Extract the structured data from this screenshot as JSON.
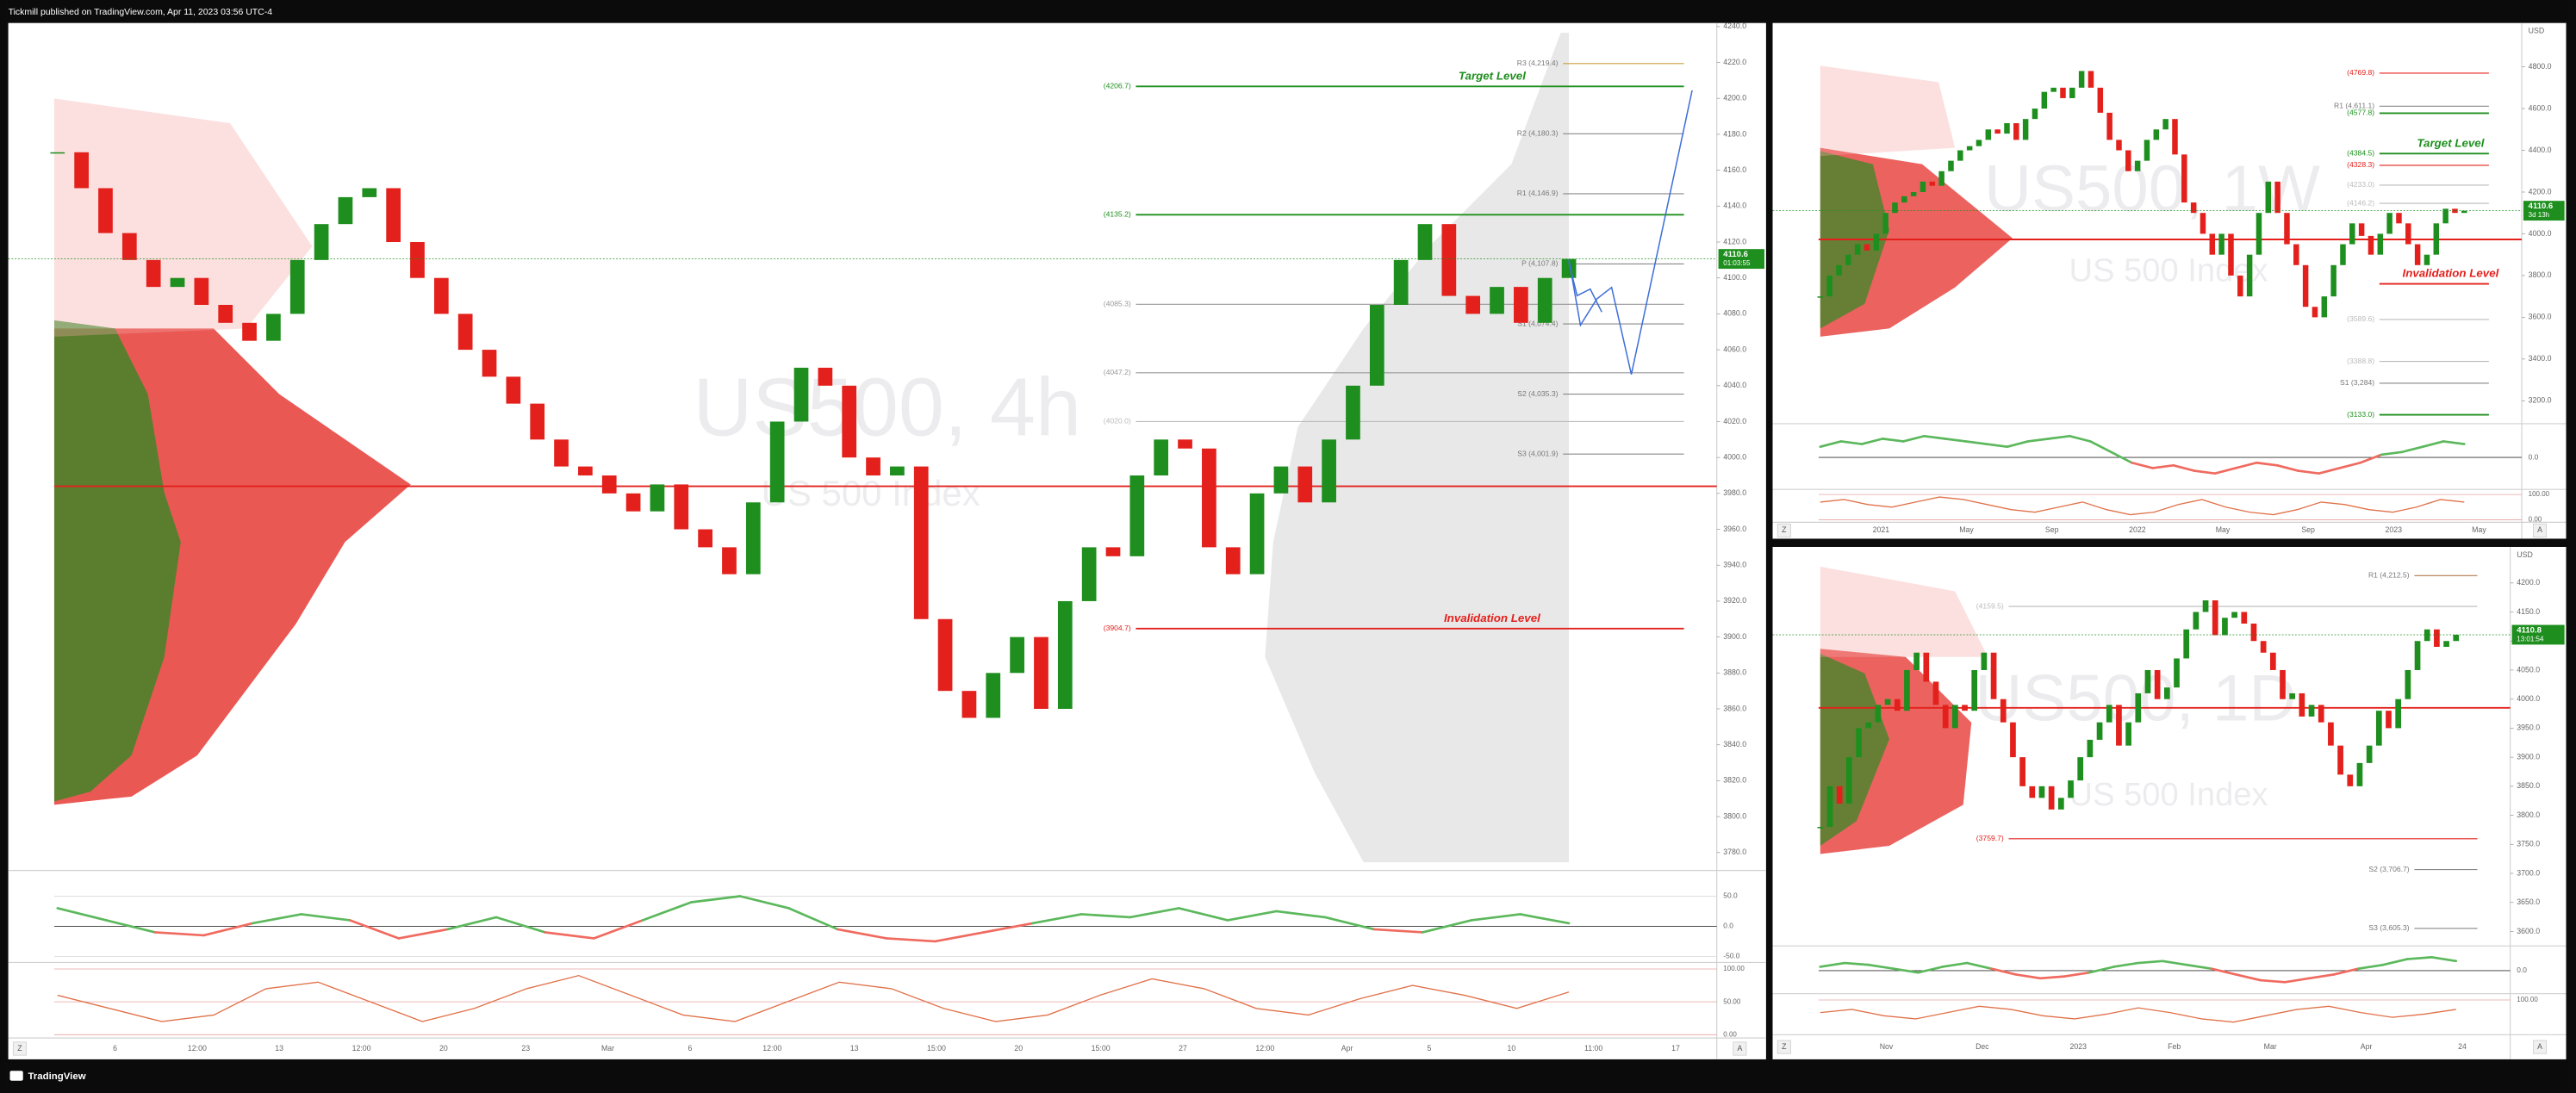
{
  "header": {
    "publisher": "Tickmill published on TradingView.com, Apr 11, 2023 03:56 UTC-4"
  },
  "footer": {
    "brand": "TradingView"
  },
  "controls": {
    "zoom": "Z",
    "auto": "A"
  },
  "candle_colors": {
    "up": "#1e8f1e",
    "down": "#e3201b"
  },
  "panels": [
    {
      "watermark": "US500, 4h",
      "subtitle": "US 500 Index",
      "ylim": [
        3770,
        4242
      ],
      "yticks": [
        {
          "value": 3780,
          "label": "3780.0"
        },
        {
          "value": 3800,
          "label": "3800.0"
        },
        {
          "value": 3820,
          "label": "3820.0"
        },
        {
          "value": 3840,
          "label": "3840.0"
        },
        {
          "value": 3860,
          "label": "3860.0"
        },
        {
          "value": 3880,
          "label": "3880.0"
        },
        {
          "value": 3900,
          "label": "3900.0"
        },
        {
          "value": 3920,
          "label": "3920.0"
        },
        {
          "value": 3940,
          "label": "3940.0"
        },
        {
          "value": 3960,
          "label": "3960.0"
        },
        {
          "value": 3980,
          "label": "3980.0"
        },
        {
          "value": 4000,
          "label": "4000.0"
        },
        {
          "value": 4020,
          "label": "4020.0"
        },
        {
          "value": 4040,
          "label": "4040.0"
        },
        {
          "value": 4060,
          "label": "4060.0"
        },
        {
          "value": 4080,
          "label": "4080.0"
        },
        {
          "value": 4100,
          "label": "4100.0"
        },
        {
          "value": 4120,
          "label": "4120.0"
        },
        {
          "value": 4140,
          "label": "4140.0"
        },
        {
          "value": 4160,
          "label": "4160.0"
        },
        {
          "value": 4180,
          "label": "4180.0"
        },
        {
          "value": 4200,
          "label": "4200.0"
        },
        {
          "value": 4220,
          "label": "4220.0"
        },
        {
          "value": 4240,
          "label": "4240.0"
        }
      ],
      "last": {
        "value": 4110.6,
        "label": "4110.6",
        "timer": "01:03:55"
      },
      "closes": [
        4170,
        4150,
        4125,
        4110,
        4095,
        4100,
        4085,
        4075,
        4065,
        4080,
        4110,
        4130,
        4145,
        4150,
        4120,
        4100,
        4080,
        4060,
        4045,
        4030,
        4010,
        3995,
        3990,
        3980,
        3970,
        3985,
        3960,
        3950,
        3935,
        3975,
        4020,
        4050,
        4040,
        4000,
        3990,
        3995,
        3910,
        3870,
        3855,
        3880,
        3900,
        3860,
        3920,
        3950,
        3945,
        3990,
        4010,
        4005,
        3950,
        3935,
        3980,
        3995,
        3975,
        4010,
        4040,
        4085,
        4110,
        4130,
        4090,
        4080,
        4095,
        4075,
        4100,
        4110.6
      ],
      "levels": [
        {
          "text": "R3 (4,219.4)",
          "value": 4219.4,
          "color": "#c8a040"
        },
        {
          "text": "(4206.7)",
          "value": 4206.7,
          "color": "#1e8f1e",
          "note": "Target Level"
        },
        {
          "text": "R2 (4,180.3)",
          "value": 4180.3,
          "color": "#888888"
        },
        {
          "text": "R1 (4,146.9)",
          "value": 4146.9,
          "color": "#888888"
        },
        {
          "text": "(4135.2)",
          "value": 4135.2,
          "color": "#1e8f1e"
        },
        {
          "text": "P (4,107.8)",
          "value": 4107.8,
          "color": "#888888"
        },
        {
          "text": "(4085.3)",
          "value": 4085.3,
          "color": "#999999"
        },
        {
          "text": "S1 (4,074.4)",
          "value": 4074.4,
          "color": "#888888"
        },
        {
          "text": "(4047.2)",
          "value": 4047.2,
          "color": "#999999"
        },
        {
          "text": "S2 (4,035.3)",
          "value": 4035.3,
          "color": "#888888"
        },
        {
          "text": "(4020.0)",
          "value": 4020.0,
          "color": "#bbbbbb"
        },
        {
          "text": "S3 (4,001.9)",
          "value": 4001.9,
          "color": "#888888"
        },
        {
          "text": "(3904.7)",
          "value": 3904.7,
          "color": "#e3201b",
          "note": "Invalidation Level"
        }
      ],
      "poc_line": {
        "value": 3984,
        "color": "#e3201b"
      },
      "osc": {
        "ylim": [
          -60,
          90
        ],
        "yticks": [
          {
            "value": 50,
            "label": "50.0"
          },
          {
            "value": 0,
            "label": "0.0"
          },
          {
            "value": -50,
            "label": "-50.0"
          }
        ],
        "up_color": "#5cb85c",
        "down_color": "#f06a5f",
        "values": [
          30,
          10,
          -10,
          -15,
          5,
          20,
          10,
          -20,
          -5,
          15,
          -10,
          -20,
          10,
          40,
          50,
          30,
          -5,
          -20,
          -25,
          -10,
          5,
          20,
          15,
          30,
          10,
          25,
          15,
          -5,
          -10,
          10,
          20,
          5
        ]
      },
      "stoch": {
        "ylim": [
          -5,
          110
        ],
        "yticks": [
          {
            "value": 100,
            "label": "100.00"
          },
          {
            "value": 50,
            "label": "50.00"
          },
          {
            "value": 0,
            "label": "0.00"
          }
        ],
        "color": "#e0724a",
        "values": [
          60,
          40,
          20,
          30,
          70,
          80,
          50,
          20,
          40,
          70,
          90,
          60,
          30,
          20,
          50,
          80,
          70,
          40,
          20,
          30,
          60,
          85,
          70,
          40,
          30,
          55,
          75,
          60,
          40,
          65
        ]
      },
      "xticks": [
        "6",
        "12:00",
        "13",
        "12:00",
        "20",
        "23",
        "Mar",
        "6",
        "12:00",
        "13",
        "15:00",
        "20",
        "15:00",
        "27",
        "12:00",
        "Apr",
        "5",
        "10",
        "11:00",
        "17"
      ]
    },
    {
      "watermark": "US500, 1W",
      "subtitle": "US 500 Index",
      "currency": "USD",
      "ylim": [
        3090,
        5010
      ],
      "yticks": [
        {
          "value": 3200,
          "label": "3200.0"
        },
        {
          "value": 3400,
          "label": "3400.0"
        },
        {
          "value": 3600,
          "label": "3600.0"
        },
        {
          "value": 3800,
          "label": "3800.0"
        },
        {
          "value": 4000,
          "label": "4000.0"
        },
        {
          "value": 4200,
          "label": "4200.0"
        },
        {
          "value": 4400,
          "label": "4400.0"
        },
        {
          "value": 4600,
          "label": "4600.0"
        },
        {
          "value": 4800,
          "label": "4800.0"
        }
      ],
      "last": {
        "value": 4110.6,
        "label": "4110.6",
        "timer": "3d 13h"
      },
      "closes": [
        3700,
        3800,
        3850,
        3900,
        3950,
        3920,
        4000,
        4100,
        4150,
        4180,
        4200,
        4250,
        4230,
        4300,
        4350,
        4400,
        4420,
        4450,
        4500,
        4480,
        4530,
        4450,
        4550,
        4600,
        4680,
        4700,
        4650,
        4700,
        4780,
        4700,
        4580,
        4450,
        4400,
        4300,
        4350,
        4450,
        4500,
        4550,
        4380,
        4150,
        4100,
        4000,
        3900,
        4000,
        3800,
        3700,
        3900,
        4100,
        4250,
        4100,
        3950,
        3850,
        3650,
        3600,
        3700,
        3850,
        3950,
        4050,
        3990,
        3900,
        4000,
        4100,
        4050,
        3950,
        3850,
        3900,
        4050,
        4120,
        4100,
        4110.6
      ],
      "levels": [
        {
          "text": "(4769.8)",
          "value": 4769.8,
          "color": "#e3201b"
        },
        {
          "text": "R1 (4,611.1)",
          "value": 4611.1,
          "color": "#888888"
        },
        {
          "text": "(4577.8)",
          "value": 4577.8,
          "color": "#1e8f1e"
        },
        {
          "text": "(4384.5)",
          "value": 4384.5,
          "color": "#1e8f1e",
          "note": "Target Level"
        },
        {
          "text": "(4328.3)",
          "value": 4328.3,
          "color": "#e3201b"
        },
        {
          "text": "(4233.0)",
          "value": 4233.0,
          "color": "#bbbbbb"
        },
        {
          "text": "(4146.2)",
          "value": 4146.2,
          "color": "#bbbbbb"
        },
        {
          "value": 3760,
          "color": "#e3201b",
          "note": "Invalidation Level"
        },
        {
          "text": "(3589.6)",
          "value": 3589.6,
          "color": "#bbbbbb"
        },
        {
          "text": "(3388.8)",
          "value": 3388.8,
          "color": "#bbbbbb"
        },
        {
          "text": "S1 (3,284)",
          "value": 3284,
          "color": "#888888"
        },
        {
          "text": "(3133.0)",
          "value": 3133.0,
          "color": "#1e8f1e"
        }
      ],
      "poc_line": {
        "value": 3973,
        "color": "#e3201b"
      },
      "osc": {
        "ylim": [
          -60,
          60
        ],
        "yticks": [
          {
            "value": 0,
            "label": "0.0"
          }
        ],
        "up_color": "#5cb85c",
        "down_color": "#f06a5f",
        "values": [
          20,
          30,
          25,
          35,
          30,
          40,
          35,
          30,
          25,
          20,
          30,
          35,
          40,
          30,
          10,
          -10,
          -20,
          -15,
          -25,
          -30,
          -20,
          -10,
          -15,
          -25,
          -30,
          -20,
          -10,
          5,
          10,
          20,
          30,
          25
        ]
      },
      "stoch": {
        "ylim": [
          -10,
          120
        ],
        "yticks": [
          {
            "value": 100,
            "label": "100.00"
          },
          {
            "value": 0,
            "label": "0.00"
          }
        ],
        "color": "#e0724a",
        "values": [
          70,
          80,
          60,
          50,
          70,
          90,
          80,
          60,
          40,
          30,
          50,
          70,
          40,
          20,
          30,
          60,
          80,
          50,
          30,
          20,
          40,
          70,
          60,
          40,
          30,
          50,
          80,
          70
        ]
      },
      "xticks": [
        "2021",
        "May",
        "Sep",
        "2022",
        "May",
        "Sep",
        "2023",
        "May"
      ]
    },
    {
      "watermark": "US500, 1D",
      "subtitle": "US 500 Index",
      "currency": "USD",
      "ylim": [
        3575,
        4262
      ],
      "yticks": [
        {
          "value": 3600,
          "label": "3600.0"
        },
        {
          "value": 3650,
          "label": "3650.0"
        },
        {
          "value": 3700,
          "label": "3700.0"
        },
        {
          "value": 3750,
          "label": "3750.0"
        },
        {
          "value": 3800,
          "label": "3800.0"
        },
        {
          "value": 3850,
          "label": "3850.0"
        },
        {
          "value": 3900,
          "label": "3900.0"
        },
        {
          "value": 3950,
          "label": "3950.0"
        },
        {
          "value": 4000,
          "label": "4000.0"
        },
        {
          "value": 4050,
          "label": "4050.0"
        },
        {
          "value": 4100,
          "label": "4100.0"
        },
        {
          "value": 4150,
          "label": "4150.0"
        },
        {
          "value": 4200,
          "label": "4200.0"
        }
      ],
      "last": {
        "value": 4110.8,
        "label": "4110.8",
        "timer": "13:01:54"
      },
      "closes": [
        3780,
        3850,
        3820,
        3900,
        3950,
        3960,
        3990,
        4000,
        3980,
        4050,
        4080,
        4030,
        3990,
        3950,
        3990,
        3980,
        4050,
        4080,
        4000,
        3960,
        3900,
        3850,
        3830,
        3850,
        3810,
        3830,
        3860,
        3900,
        3930,
        3960,
        3990,
        3920,
        3960,
        4010,
        4050,
        4000,
        4020,
        4070,
        4120,
        4150,
        4170,
        4110,
        4140,
        4150,
        4130,
        4100,
        4080,
        4050,
        4000,
        4010,
        3970,
        3990,
        3960,
        3920,
        3870,
        3850,
        3890,
        3920,
        3980,
        3950,
        4000,
        4050,
        4100,
        4120,
        4090,
        4100,
        4110.8
      ],
      "levels": [
        {
          "text": "R1 (4,212.5)",
          "value": 4212.5,
          "color": "#b07a50"
        },
        {
          "text": "(4159.5)",
          "value": 4159.5,
          "color": "#bbbbbb"
        },
        {
          "text": "(3759.7)",
          "value": 3759.7,
          "color": "#e3201b"
        },
        {
          "text": "S2 (3,706.7)",
          "value": 3706.7,
          "color": "#888888"
        },
        {
          "text": "S3 (3,605.3)",
          "value": 3605.3,
          "color": "#888888"
        }
      ],
      "poc_line": {
        "value": 3985,
        "color": "#e3201b"
      },
      "osc": {
        "ylim": [
          -60,
          60
        ],
        "yticks": [
          {
            "value": 0,
            "label": "0.0"
          }
        ],
        "up_color": "#5cb85c",
        "down_color": "#f06a5f",
        "values": [
          10,
          20,
          15,
          5,
          -5,
          10,
          20,
          5,
          -10,
          -20,
          -15,
          -5,
          10,
          20,
          25,
          15,
          5,
          -10,
          -25,
          -30,
          -20,
          -10,
          5,
          15,
          30,
          35,
          25
        ]
      },
      "stoch": {
        "ylim": [
          -10,
          120
        ],
        "yticks": [
          {
            "value": 100,
            "label": "100.00"
          }
        ],
        "color": "#e0724a",
        "values": [
          60,
          70,
          50,
          40,
          60,
          80,
          70,
          50,
          40,
          55,
          75,
          60,
          40,
          30,
          50,
          70,
          80,
          60,
          45,
          55,
          70
        ]
      },
      "xticks": [
        "Nov",
        "Dec",
        "2023",
        "Feb",
        "Mar",
        "Apr",
        "24"
      ]
    }
  ]
}
